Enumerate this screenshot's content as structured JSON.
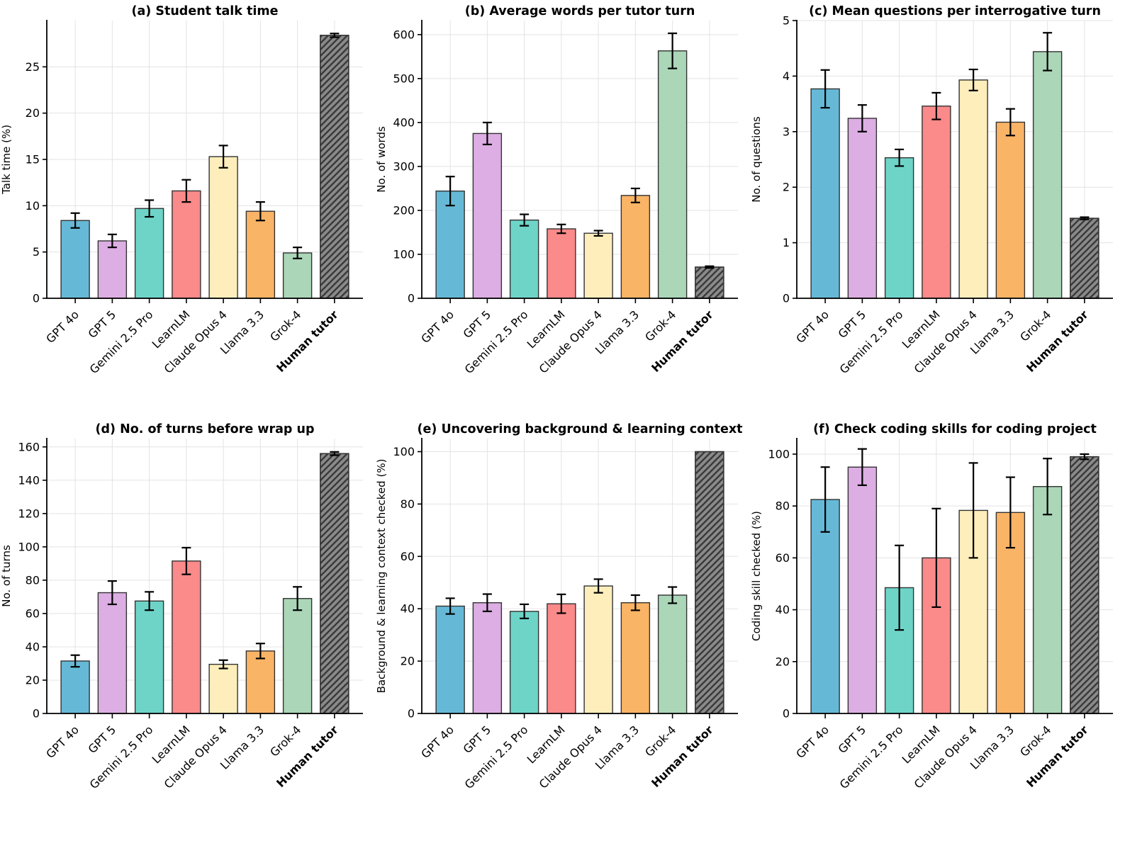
{
  "figure": {
    "background": "#ffffff",
    "grid_color": "#e3e3e3",
    "spine_color": "#000000",
    "bar_edge_color": "#333333",
    "error_bar_color": "#000000",
    "hatch_fill": "#8a8a8a",
    "hatch_line_color": "#3a3a3a"
  },
  "bar_colors": [
    "#66b9d6",
    "#dcaee3",
    "#6ed4c8",
    "#fb8a8a",
    "#fdeebc",
    "#fab466",
    "#abd6b8",
    "#8a8a8a"
  ],
  "categories": [
    "GPT 4o",
    "GPT 5",
    "Gemini 2.5 Pro",
    "LearnLM",
    "Claude Opus 4",
    "Llama 3.3",
    "Grok-4",
    "Human tutor"
  ],
  "chart_data": [
    {
      "type": "bar",
      "panel": "a",
      "title": "(a) Student talk time",
      "ylabel": "Talk time (%)",
      "ylim": [
        0,
        30
      ],
      "yticks": [
        0,
        5,
        10,
        15,
        20,
        25
      ],
      "grid": true,
      "legend_position": "none",
      "categories": [
        "GPT 4o",
        "GPT 5",
        "Gemini 2.5 Pro",
        "LearnLM",
        "Claude Opus 4",
        "Llama 3.3",
        "Grok-4",
        "Human tutor"
      ],
      "values": [
        8.4,
        6.2,
        9.7,
        11.6,
        15.3,
        9.4,
        4.9,
        28.4
      ],
      "errors": [
        0.8,
        0.7,
        0.9,
        1.2,
        1.2,
        1.0,
        0.6,
        0.2
      ]
    },
    {
      "type": "bar",
      "panel": "b",
      "title": "(b) Average words per tutor turn",
      "ylabel": "No. of words",
      "ylim": [
        0,
        632
      ],
      "yticks": [
        0,
        100,
        200,
        300,
        400,
        500,
        600
      ],
      "grid": true,
      "legend_position": "none",
      "categories": [
        "GPT 4o",
        "GPT 5",
        "Gemini 2.5 Pro",
        "LearnLM",
        "Claude Opus 4",
        "Llama 3.3",
        "Grok-4",
        "Human tutor"
      ],
      "values": [
        244,
        375,
        178,
        158,
        148,
        234,
        563,
        71
      ],
      "errors": [
        33,
        25,
        13,
        10,
        6,
        16,
        40,
        2
      ]
    },
    {
      "type": "bar",
      "panel": "c",
      "title": "(c) Mean questions per interrogative turn",
      "ylabel": "No. of questions",
      "ylim": [
        0,
        5
      ],
      "yticks": [
        0,
        1,
        2,
        3,
        4,
        5
      ],
      "grid": true,
      "legend_position": "none",
      "categories": [
        "GPT 4o",
        "GPT 5",
        "Gemini 2.5 Pro",
        "LearnLM",
        "Claude Opus 4",
        "Llama 3.3",
        "Grok-4",
        "Human tutor"
      ],
      "values": [
        3.77,
        3.24,
        2.53,
        3.46,
        3.93,
        3.17,
        4.44,
        1.44
      ],
      "errors": [
        0.34,
        0.24,
        0.15,
        0.24,
        0.19,
        0.24,
        0.34,
        0.02
      ]
    },
    {
      "type": "bar",
      "panel": "d",
      "title": "(d) No. of turns before wrap up",
      "ylabel": "No. of turns",
      "ylim": [
        0,
        165
      ],
      "yticks": [
        0,
        20,
        40,
        60,
        80,
        100,
        120,
        140,
        160
      ],
      "grid": true,
      "legend_position": "none",
      "categories": [
        "GPT 4o",
        "GPT 5",
        "Gemini 2.5 Pro",
        "LearnLM",
        "Claude Opus 4",
        "Llama 3.3",
        "Grok-4",
        "Human tutor"
      ],
      "values": [
        31.5,
        72.5,
        67.5,
        91.5,
        29.5,
        37.5,
        69,
        156
      ],
      "errors": [
        3.5,
        7,
        5.5,
        8,
        2.5,
        4.5,
        7,
        1
      ]
    },
    {
      "type": "bar",
      "panel": "e",
      "title": "(e) Uncovering background & learning context",
      "ylabel": "Background & learning context checked (%)",
      "ylim": [
        0,
        105
      ],
      "yticks": [
        0,
        20,
        40,
        60,
        80,
        100
      ],
      "grid": true,
      "legend_position": "none",
      "categories": [
        "GPT 4o",
        "GPT 5",
        "Gemini 2.5 Pro",
        "LearnLM",
        "Claude Opus 4",
        "Llama 3.3",
        "Grok-4",
        "Human tutor"
      ],
      "values": [
        41,
        42.3,
        39,
        41.9,
        48.7,
        42.3,
        45.2,
        100
      ],
      "errors": [
        3,
        3.3,
        2.7,
        3.6,
        2.6,
        2.9,
        3.1,
        0
      ]
    },
    {
      "type": "bar",
      "panel": "f",
      "title": "(f) Check coding skills for coding project",
      "ylabel": "Coding skill checked (%)",
      "ylim": [
        0,
        106
      ],
      "yticks": [
        0,
        20,
        40,
        60,
        80,
        100
      ],
      "grid": true,
      "legend_position": "none",
      "categories": [
        "GPT 4o",
        "GPT 5",
        "Gemini 2.5 Pro",
        "LearnLM",
        "Claude Opus 4",
        "Llama 3.3",
        "Grok-4",
        "Human tutor"
      ],
      "values": [
        82.5,
        95,
        48.5,
        60,
        78.3,
        77.5,
        87.5,
        99
      ],
      "errors": [
        12.5,
        7,
        16.3,
        19,
        18.3,
        13.6,
        10.8,
        1
      ]
    }
  ]
}
